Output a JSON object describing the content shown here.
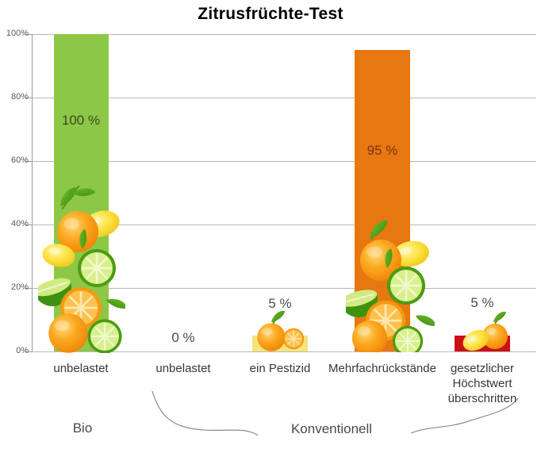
{
  "title": "Zitrusfrüchte-Test",
  "chart_data": {
    "type": "bar",
    "title": "Zitrusfrüchte-Test",
    "categories": [
      "unbelastet",
      "unbelastet",
      "ein Pestizid",
      "Mehrfachrückstände",
      "gesetzlicher Höchstwert überschritten"
    ],
    "values": [
      100,
      0,
      5,
      95,
      5
    ],
    "value_labels": [
      "100 %",
      "0 %",
      "5 %",
      "95 %",
      "5 %"
    ],
    "bar_colors": [
      "#8dc748",
      "none",
      "#f6e47c",
      "#e67711",
      "#cb1016"
    ],
    "value_label_colors": [
      "#38491b",
      "#4d4d4d",
      "#4d4d4d",
      "#82300f",
      "#4d4d4d"
    ],
    "groups": [
      {
        "label": "Bio",
        "categories": [
          "unbelastet"
        ]
      },
      {
        "label": "Konventionell",
        "categories": [
          "unbelastet",
          "ein Pestizid",
          "Mehrfachrückstände",
          "gesetzlicher Höchstwert überschritten"
        ]
      }
    ],
    "xlabel": "",
    "ylabel": "",
    "ylim": [
      0,
      100
    ],
    "yticks": [
      "100%",
      "80%",
      "60%",
      "40%",
      "20%",
      "0%"
    ],
    "grid": true,
    "legend": false,
    "decoration": "stacks of citrus fruit photos (oranges, lemons, limes with leaves) on the bars"
  },
  "colors": {
    "background": "#ffffff",
    "grid": "#b9b9b9",
    "axis": "#9b9b9b",
    "brace": "#8a8a8a",
    "title": "#000000"
  }
}
